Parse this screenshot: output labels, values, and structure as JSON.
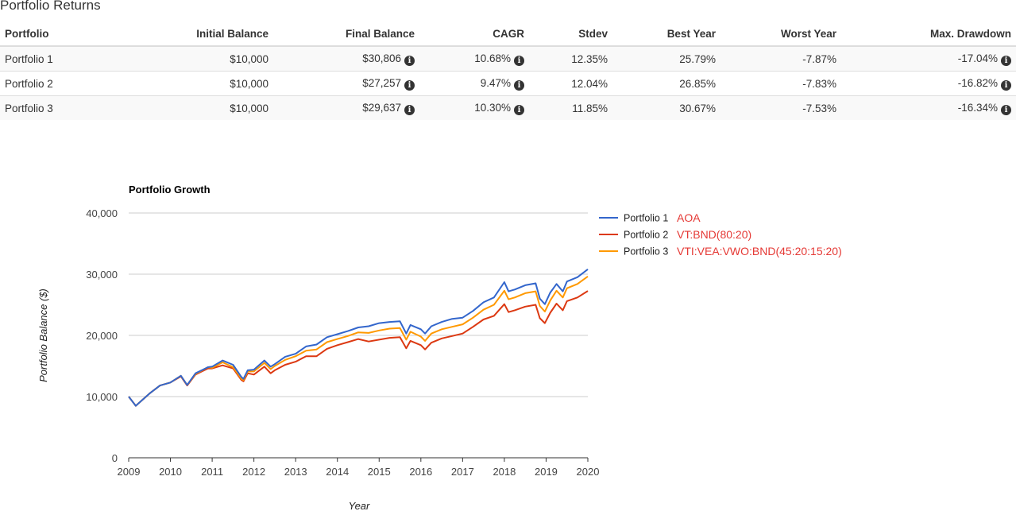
{
  "page_title": "Portfolio Returns",
  "table": {
    "columns": [
      "Portfolio",
      "Initial Balance",
      "Final Balance",
      "CAGR",
      "Stdev",
      "Best Year",
      "Worst Year",
      "Max. Drawdown"
    ],
    "rows": [
      {
        "portfolio": "Portfolio 1",
        "initial": "$10,000",
        "final": "$30,806",
        "cagr": "10.68%",
        "stdev": "12.35%",
        "best": "25.79%",
        "worst": "-7.87%",
        "drawdown": "-17.04%"
      },
      {
        "portfolio": "Portfolio 2",
        "initial": "$10,000",
        "final": "$27,257",
        "cagr": "9.47%",
        "stdev": "12.04%",
        "best": "26.85%",
        "worst": "-7.83%",
        "drawdown": "-16.82%"
      },
      {
        "portfolio": "Portfolio 3",
        "initial": "$10,000",
        "final": "$29,637",
        "cagr": "10.30%",
        "stdev": "11.85%",
        "best": "30.67%",
        "worst": "-7.53%",
        "drawdown": "-16.34%"
      }
    ]
  },
  "chart_data": {
    "type": "line",
    "title": "Portfolio Growth",
    "xlabel": "Year",
    "ylabel": "Portfolio Balance ($)",
    "xlim": [
      2009,
      2020
    ],
    "ylim": [
      0,
      40000
    ],
    "x_ticks": [
      "2009",
      "2010",
      "2011",
      "2012",
      "2013",
      "2014",
      "2015",
      "2016",
      "2017",
      "2018",
      "2019",
      "2020"
    ],
    "y_ticks": [
      "0",
      "10,000",
      "20,000",
      "30,000",
      "40,000"
    ],
    "grid": true,
    "legend_position": "right",
    "x": [
      2009.0,
      2009.17,
      2009.5,
      2009.75,
      2010.0,
      2010.25,
      2010.4,
      2010.6,
      2010.9,
      2011.0,
      2011.25,
      2011.5,
      2011.7,
      2011.75,
      2011.85,
      2012.0,
      2012.25,
      2012.4,
      2012.5,
      2012.75,
      2013.0,
      2013.25,
      2013.5,
      2013.75,
      2014.0,
      2014.25,
      2014.5,
      2014.75,
      2015.0,
      2015.25,
      2015.5,
      2015.65,
      2015.75,
      2016.0,
      2016.1,
      2016.25,
      2016.5,
      2016.75,
      2017.0,
      2017.25,
      2017.5,
      2017.75,
      2018.0,
      2018.1,
      2018.25,
      2018.5,
      2018.75,
      2018.85,
      2018.97,
      2019.1,
      2019.25,
      2019.4,
      2019.5,
      2019.75,
      2020.0
    ],
    "series": [
      {
        "name": "Portfolio 1",
        "ticker": "AOA",
        "color": "#3366cc",
        "values": [
          10000,
          8500,
          10500,
          11800,
          12300,
          13400,
          11900,
          13800,
          14800,
          14900,
          15900,
          15200,
          13200,
          12900,
          14300,
          14400,
          15900,
          14900,
          15300,
          16500,
          17000,
          18200,
          18500,
          19700,
          20200,
          20700,
          21300,
          21500,
          22000,
          22200,
          22300,
          20300,
          21700,
          21000,
          20300,
          21500,
          22200,
          22700,
          22900,
          24000,
          25400,
          26200,
          28700,
          27200,
          27500,
          28200,
          28500,
          26000,
          25100,
          27000,
          28400,
          27200,
          28800,
          29500,
          30806
        ]
      },
      {
        "name": "Portfolio 2",
        "ticker": "VT:BND(80:20)",
        "color": "#dc3912",
        "values": [
          10000,
          8500,
          10500,
          11800,
          12300,
          13300,
          11800,
          13600,
          14600,
          14600,
          15100,
          14600,
          12700,
          12500,
          13800,
          13600,
          14900,
          13800,
          14300,
          15200,
          15700,
          16600,
          16600,
          17800,
          18400,
          18900,
          19400,
          19000,
          19300,
          19600,
          19700,
          17900,
          19100,
          18400,
          17700,
          18800,
          19500,
          19900,
          20300,
          21400,
          22600,
          23200,
          25100,
          23800,
          24100,
          24700,
          25000,
          22800,
          22000,
          23700,
          25200,
          24100,
          25600,
          26200,
          27257
        ]
      },
      {
        "name": "Portfolio 3",
        "ticker": "VTI:VEA:VWO:BND(45:20:15:20)",
        "color": "#ff9900",
        "values": [
          10000,
          8500,
          10500,
          11800,
          12300,
          13400,
          11900,
          13700,
          14800,
          14700,
          15600,
          14800,
          12900,
          12700,
          14100,
          14100,
          15500,
          14500,
          15000,
          16000,
          16600,
          17500,
          17700,
          18900,
          19400,
          19900,
          20500,
          20400,
          20800,
          21100,
          21200,
          19300,
          20600,
          19800,
          19100,
          20300,
          21000,
          21400,
          21800,
          22900,
          24200,
          25000,
          27300,
          25900,
          26200,
          26900,
          27200,
          24800,
          23900,
          25700,
          27300,
          26200,
          27700,
          28400,
          29637
        ]
      }
    ]
  }
}
